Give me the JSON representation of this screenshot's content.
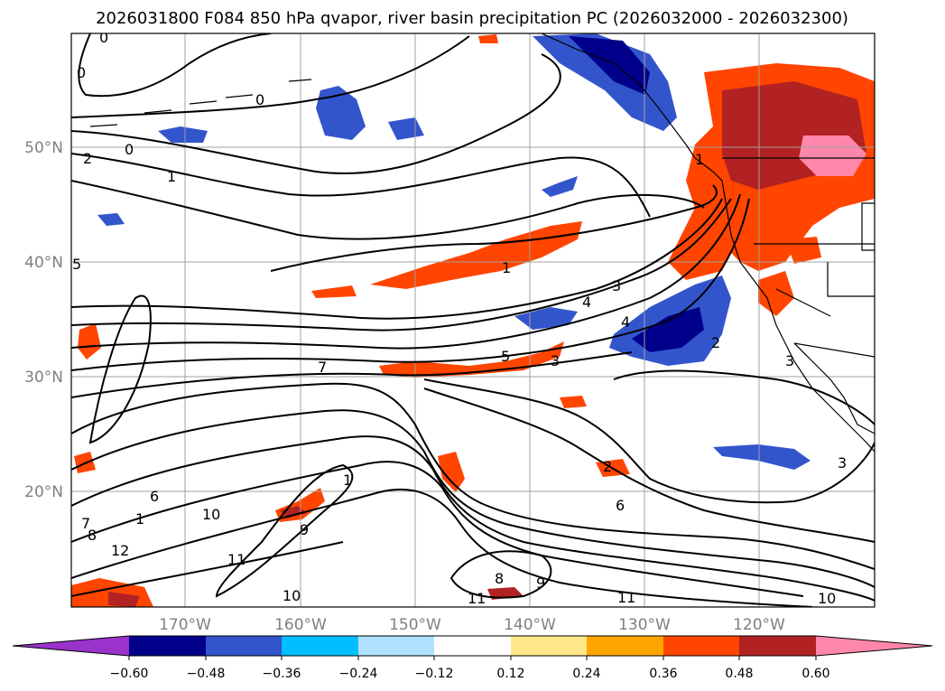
{
  "title": "2026031800 F084 850 hPa qvapor, river basin precipitation PC (2026032000 - 2026032300)",
  "map": {
    "lon_labels": [
      "170°W",
      "160°W",
      "150°W",
      "140°W",
      "130°W",
      "120°W"
    ],
    "lat_labels": [
      "50°N",
      "40°N",
      "30°N",
      "20°N"
    ],
    "gridlines": true
  },
  "colorbar": {
    "ticks": [
      "−0.60",
      "−0.48",
      "−0.36",
      "−0.24",
      "−0.12",
      "0.12",
      "0.24",
      "0.36",
      "0.48",
      "0.60"
    ],
    "colors": [
      "#9933cc",
      "#00008b",
      "#3355cc",
      "#00bfff",
      "#b0e2ff",
      "#ffffff",
      "#ffe88a",
      "#ffa500",
      "#ff4500",
      "#b22222",
      "#ff88aa"
    ]
  },
  "contour_labels": [
    "0",
    "0",
    "0",
    "0",
    "2",
    "1",
    "1",
    "1",
    "4",
    "3",
    "4",
    "2",
    "5",
    "3",
    "7",
    "5",
    "1",
    "1",
    "6",
    "7",
    "10",
    "12",
    "8",
    "11",
    "9",
    "10",
    "2",
    "6",
    "8",
    "9",
    "11",
    "11",
    "10",
    "3",
    "3"
  ]
}
